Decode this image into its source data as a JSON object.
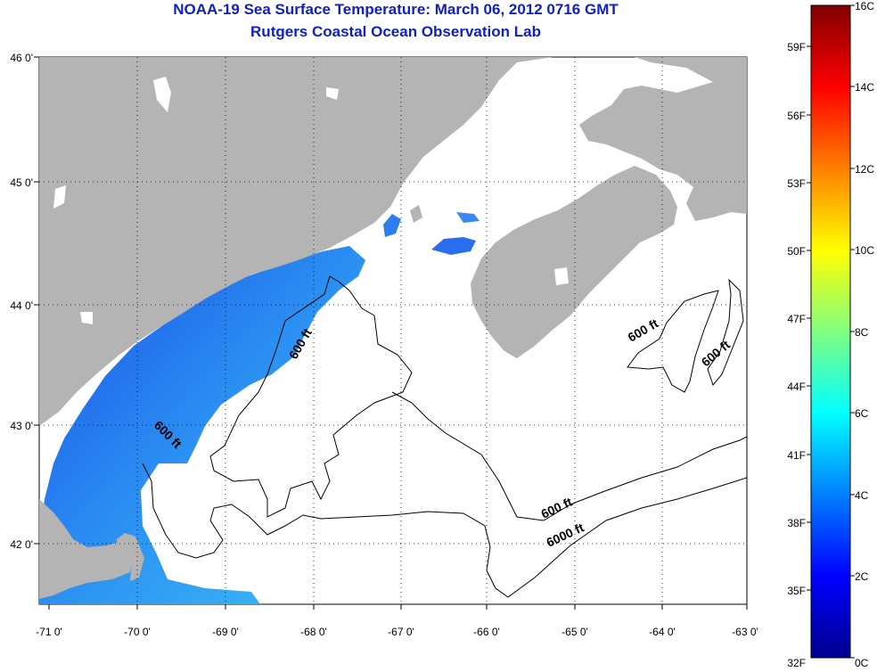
{
  "title": "NOAA-19 Sea Surface Temperature:  March 06, 2012 0716 GMT",
  "subtitle": "Rutgers Coastal Ocean Observation Lab",
  "map": {
    "lat_labels": [
      "46 0'",
      "45 0'",
      "44 0'",
      "43 0'",
      "42 0'"
    ],
    "lon_labels": [
      "-71 0'",
      "-70 0'",
      "-69 0'",
      "-68 0'",
      "-67 0'",
      "-66 0'",
      "-65 0'",
      "-64 0'",
      "-63 0'"
    ],
    "contour_labels": [
      {
        "text": "600 ft"
      },
      {
        "text": "600 ft"
      },
      {
        "text": "600 ft"
      },
      {
        "text": "600 ft"
      },
      {
        "text": "600 ft"
      },
      {
        "text": "6000 ft"
      }
    ],
    "colors": {
      "land": "#b4b4b4",
      "water_cold": "#1a5cf0",
      "water_mid": "#2aa8f4",
      "ocean_no_data": "#ffffff"
    }
  },
  "colorbar": {
    "celsius_labels": [
      "16C",
      "14C",
      "12C",
      "10C",
      "8C",
      "6C",
      "4C",
      "2C",
      "0C"
    ],
    "fahrenheit_labels": [
      "59F",
      "56F",
      "53F",
      "50F",
      "47F",
      "44F",
      "41F",
      "38F",
      "35F",
      "32F"
    ]
  }
}
